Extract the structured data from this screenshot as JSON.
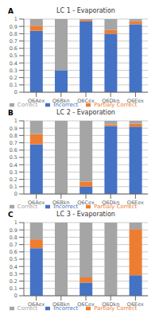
{
  "chart_data": [
    {
      "type": "bar",
      "title": "LC 1 - Evaporation",
      "annotations": [
        "A"
      ],
      "categories": [
        "Q6Aex",
        "Q6Bkn",
        "Q6Cex",
        "Q6Dkn",
        "Q6Eex"
      ],
      "series": [
        {
          "name": "Incorrect",
          "color": "#4472C4",
          "values": [
            0.84,
            0.3,
            0.97,
            0.8,
            0.93
          ]
        },
        {
          "name": "Partialy Correct",
          "color": "#ED7D31",
          "values": [
            0.07,
            0.0,
            0.02,
            0.05,
            0.04
          ]
        },
        {
          "name": "Correct",
          "color": "#A5A5A5",
          "values": [
            0.09,
            0.7,
            0.01,
            0.15,
            0.03
          ]
        }
      ],
      "ylim": [
        0,
        1.0
      ],
      "yticks": [
        0,
        0.1,
        0.2,
        0.3,
        0.4,
        0.5,
        0.6,
        0.7,
        0.8,
        0.9,
        1
      ],
      "stacked": true,
      "grid": true,
      "legend": "bottom"
    },
    {
      "type": "bar",
      "title": "LC 2 - Evaporation",
      "annotations": [
        "B"
      ],
      "categories": [
        "Q6Aex",
        "Q6Bkn",
        "Q6Cex",
        "Q6Dkn",
        "Q6Eex"
      ],
      "series": [
        {
          "name": "Incorrect",
          "color": "#4472C4",
          "values": [
            0.68,
            0.0,
            0.1,
            0.93,
            0.92
          ]
        },
        {
          "name": "Partialy Correct",
          "color": "#ED7D31",
          "values": [
            0.14,
            0.0,
            0.07,
            0.02,
            0.04
          ]
        },
        {
          "name": "Correct",
          "color": "#A5A5A5",
          "values": [
            0.18,
            1.0,
            0.83,
            0.05,
            0.04
          ]
        }
      ],
      "ylim": [
        0,
        1.0
      ],
      "yticks": [
        0,
        0.1,
        0.2,
        0.3,
        0.4,
        0.5,
        0.6,
        0.7,
        0.8,
        0.9,
        1
      ],
      "stacked": true,
      "grid": true,
      "legend": "bottom"
    },
    {
      "type": "bar",
      "title": "LC 3 - Evaporation",
      "annotations": [
        "C"
      ],
      "categories": [
        "Q6Aex",
        "Q6Bkn",
        "Q6Cex",
        "Q6Dkn",
        "Q6Eex"
      ],
      "series": [
        {
          "name": "Incorrect",
          "color": "#4472C4",
          "values": [
            0.65,
            0.0,
            0.18,
            0.0,
            0.28
          ]
        },
        {
          "name": "Partialy Correct",
          "color": "#ED7D31",
          "values": [
            0.12,
            0.0,
            0.07,
            0.0,
            0.63
          ]
        },
        {
          "name": "Correct",
          "color": "#A5A5A5",
          "values": [
            0.23,
            1.0,
            0.75,
            1.0,
            0.09
          ]
        }
      ],
      "ylim": [
        0,
        1.0
      ],
      "yticks": [
        0,
        0.1,
        0.2,
        0.3,
        0.4,
        0.5,
        0.6,
        0.7,
        0.8,
        0.9,
        1
      ],
      "stacked": true,
      "grid": true,
      "legend": "bottom"
    }
  ]
}
